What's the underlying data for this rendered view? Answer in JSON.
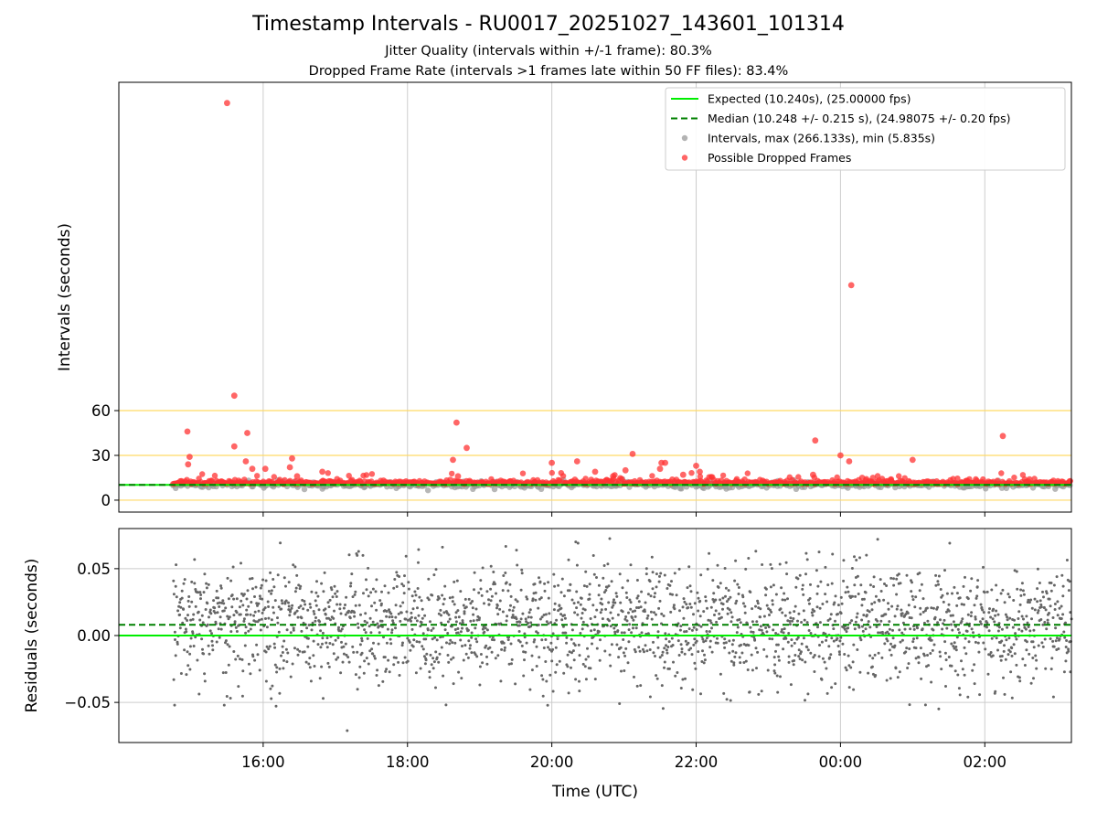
{
  "chart_data": [
    {
      "type": "scatter",
      "panel": "intervals",
      "title": "Timestamp Intervals - RU0017_20251027_143601_101314",
      "subtitle_1": "Jitter Quality (intervals within +/-1 frame): 80.3%",
      "subtitle_2": "Dropped Frame Rate (intervals >1 frames late within 50 FF files): 83.4%",
      "xlabel": "",
      "ylabel": "Intervals (seconds)",
      "xlim_hours": [
        14.0,
        27.2
      ],
      "ylim": [
        -8,
        280
      ],
      "yticks": [
        0,
        30,
        60
      ],
      "ytick_labels": [
        "0",
        "30",
        "60"
      ],
      "reference_lines_y": [
        0,
        30,
        60
      ],
      "reference_line_color": "#ffd966",
      "expected_value": 10.24,
      "median_value": 10.248,
      "legend_position": "upper-right",
      "legend": [
        {
          "label": "Expected (10.240s), (25.00000 fps)",
          "style": "solid-line",
          "color": "#00ee00"
        },
        {
          "label": "Median (10.248 +/- 0.215 s), (24.98075 +/- 0.20 fps)",
          "style": "dashed-line",
          "color": "#008000"
        },
        {
          "label": "Intervals, max (266.133s), min (5.835s)",
          "style": "marker",
          "color": "#999999"
        },
        {
          "label": "Possible Dropped Frames",
          "style": "marker",
          "color": "#ff3333"
        }
      ],
      "series": [
        {
          "name": "Possible Dropped Frames (outliers)",
          "color": "#ff3333",
          "points": [
            {
              "t": 14.95,
              "y": 46
            },
            {
              "t": 14.98,
              "y": 29
            },
            {
              "t": 14.96,
              "y": 24
            },
            {
              "t": 15.5,
              "y": 266.1
            },
            {
              "t": 15.6,
              "y": 70
            },
            {
              "t": 15.6,
              "y": 36
            },
            {
              "t": 15.78,
              "y": 45
            },
            {
              "t": 15.76,
              "y": 26
            },
            {
              "t": 15.85,
              "y": 21
            },
            {
              "t": 16.03,
              "y": 21
            },
            {
              "t": 16.4,
              "y": 28
            },
            {
              "t": 16.37,
              "y": 22
            },
            {
              "t": 16.47,
              "y": 16
            },
            {
              "t": 16.82,
              "y": 19
            },
            {
              "t": 18.68,
              "y": 52
            },
            {
              "t": 18.63,
              "y": 27
            },
            {
              "t": 18.82,
              "y": 35
            },
            {
              "t": 18.7,
              "y": 16
            },
            {
              "t": 20.0,
              "y": 25
            },
            {
              "t": 20.35,
              "y": 26
            },
            {
              "t": 20.6,
              "y": 19
            },
            {
              "t": 20.85,
              "y": 16
            },
            {
              "t": 21.12,
              "y": 31
            },
            {
              "t": 21.02,
              "y": 20
            },
            {
              "t": 21.52,
              "y": 25
            },
            {
              "t": 21.57,
              "y": 25
            },
            {
              "t": 21.5,
              "y": 21
            },
            {
              "t": 21.82,
              "y": 17
            },
            {
              "t": 22.0,
              "y": 23
            },
            {
              "t": 22.05,
              "y": 19
            },
            {
              "t": 22.35,
              "y": 13
            },
            {
              "t": 23.65,
              "y": 40
            },
            {
              "t": 23.62,
              "y": 17
            },
            {
              "t": 24.0,
              "y": 30
            },
            {
              "t": 24.15,
              "y": 144
            },
            {
              "t": 24.12,
              "y": 26
            },
            {
              "t": 24.3,
              "y": 15
            },
            {
              "t": 24.45,
              "y": 15
            },
            {
              "t": 24.7,
              "y": 14
            },
            {
              "t": 25.0,
              "y": 27
            },
            {
              "t": 25.75,
              "y": 13
            },
            {
              "t": 26.25,
              "y": 43
            },
            {
              "t": 26.62,
              "y": 14
            },
            {
              "t": 26.95,
              "y": 13
            }
          ]
        }
      ]
    },
    {
      "type": "scatter",
      "panel": "residuals",
      "xlabel": "Time (UTC)",
      "ylabel": "Residuals (seconds)",
      "xlim_hours": [
        14.0,
        27.2
      ],
      "ylim": [
        -0.08,
        0.08
      ],
      "yticks": [
        -0.05,
        0.0,
        0.05
      ],
      "ytick_labels": [
        "−0.05",
        "0.00",
        "0.05"
      ],
      "xticks_hours": [
        16,
        18,
        20,
        22,
        24,
        26
      ],
      "xtick_labels": [
        "16:00",
        "18:00",
        "20:00",
        "22:00",
        "00:00",
        "02:00"
      ],
      "expected_residual": 0.0,
      "median_residual": 0.008,
      "residual_spread_sd": 0.022,
      "point_color": "#666666"
    }
  ]
}
